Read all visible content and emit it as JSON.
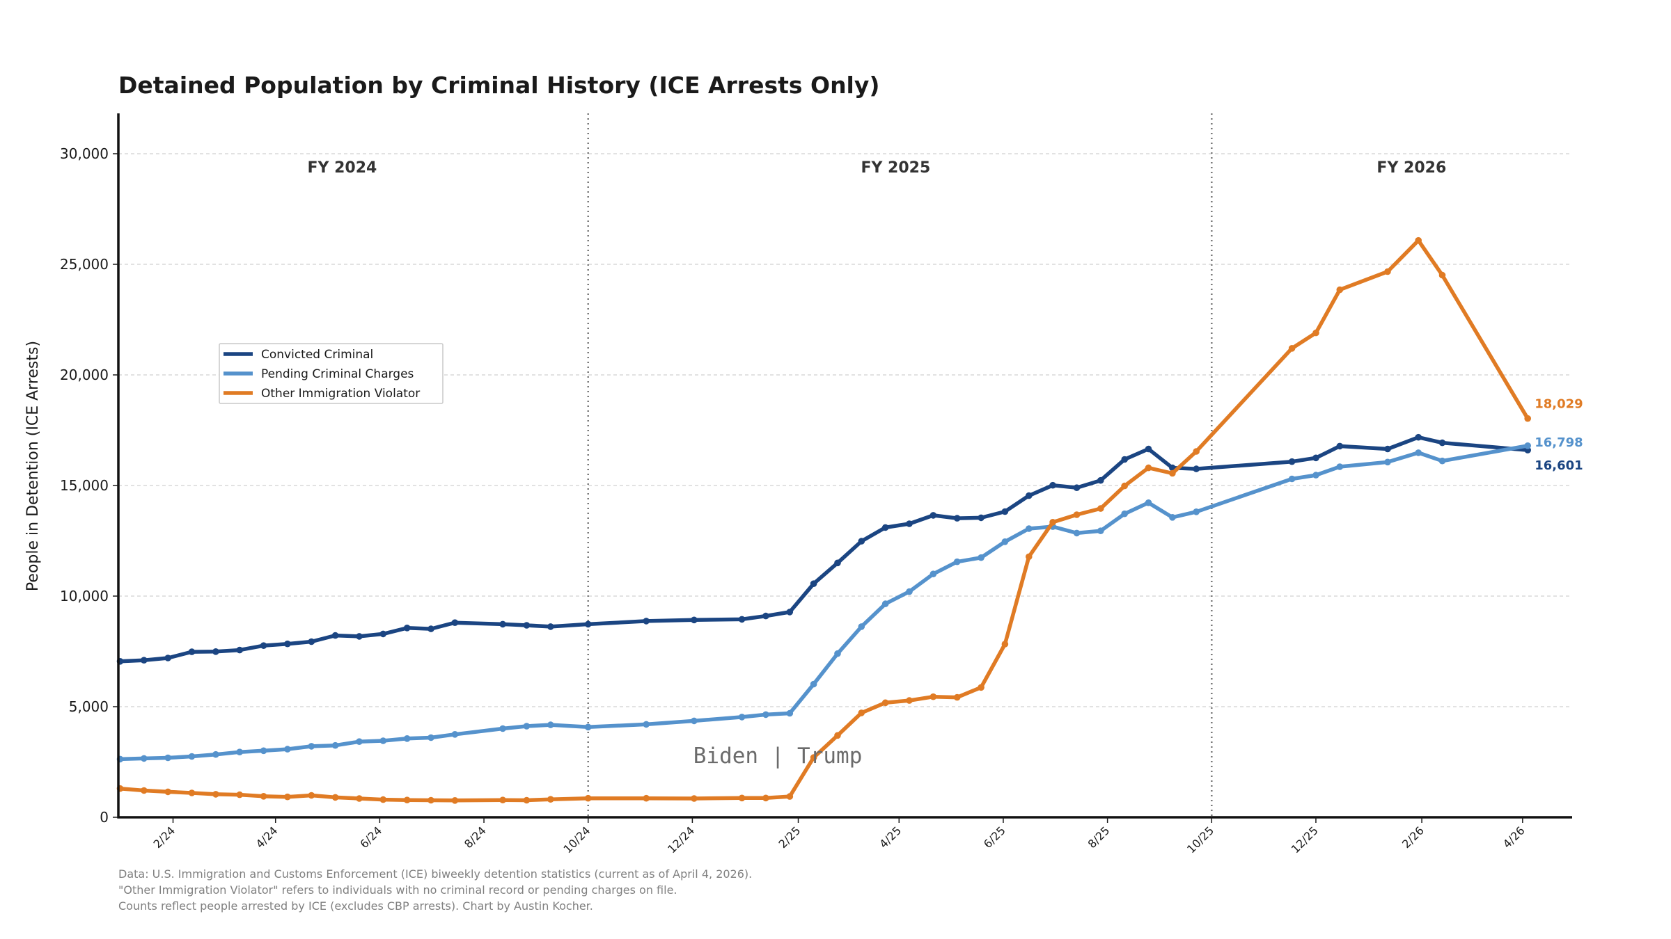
{
  "chart_data": {
    "type": "line",
    "title": "Detained Population by Criminal History (ICE Arrests Only)",
    "ylabel": "People in Detention (ICE Arrests)",
    "ylim": [
      0,
      32000
    ],
    "yticks": [
      0,
      5000,
      10000,
      15000,
      20000,
      25000,
      30000
    ],
    "ytick_labels": [
      "0",
      "5,000",
      "10,000",
      "15,000",
      "20,000",
      "25,000",
      "30,000"
    ],
    "xlim": [
      "2023-12-31",
      "2026-04-30"
    ],
    "xticks": [
      "2024-02-01",
      "2024-04-01",
      "2024-06-01",
      "2024-08-01",
      "2024-10-01",
      "2024-12-01",
      "2025-02-01",
      "2025-04-01",
      "2025-06-01",
      "2025-08-01",
      "2025-10-01",
      "2025-12-01",
      "2026-02-01",
      "2026-04-01"
    ],
    "xtick_labels": [
      "2/24",
      "4/24",
      "6/24",
      "8/24",
      "10/24",
      "12/24",
      "2/25",
      "4/25",
      "6/25",
      "8/25",
      "10/25",
      "12/25",
      "2/26",
      "4/26"
    ],
    "grid": "y-dashed",
    "legend_position": "upper-left",
    "fiscal_year_dividers": [
      "2024-10-01",
      "2025-10-01"
    ],
    "fiscal_year_labels": [
      {
        "text": "FY 2024",
        "x": "2024-05-10",
        "y": 29400
      },
      {
        "text": "FY 2025",
        "x": "2025-03-30",
        "y": 29400
      },
      {
        "text": "FY 2026",
        "x": "2026-01-26",
        "y": 29400
      }
    ],
    "era_annotation": {
      "text": "Biden  |  Trump",
      "x": "2025-01-20",
      "y": 2800
    },
    "series": [
      {
        "name": "Convicted Criminal",
        "color": "#1b4582",
        "end_label": "16,601",
        "points": [
          [
            "2024-01-01",
            7050
          ],
          [
            "2024-01-15",
            7100
          ],
          [
            "2024-01-29",
            7200
          ],
          [
            "2024-02-12",
            7480
          ],
          [
            "2024-02-26",
            7490
          ],
          [
            "2024-03-11",
            7560
          ],
          [
            "2024-03-25",
            7760
          ],
          [
            "2024-04-08",
            7840
          ],
          [
            "2024-04-22",
            7940
          ],
          [
            "2024-05-06",
            8220
          ],
          [
            "2024-05-20",
            8180
          ],
          [
            "2024-06-03",
            8290
          ],
          [
            "2024-06-17",
            8560
          ],
          [
            "2024-07-01",
            8520
          ],
          [
            "2024-07-15",
            8800
          ],
          [
            "2024-08-12",
            8730
          ],
          [
            "2024-08-26",
            8680
          ],
          [
            "2024-09-09",
            8620
          ],
          [
            "2024-10-01",
            8730
          ],
          [
            "2024-11-04",
            8870
          ],
          [
            "2024-12-02",
            8920
          ],
          [
            "2024-12-30",
            8950
          ],
          [
            "2025-01-13",
            9100
          ],
          [
            "2025-01-27",
            9280
          ],
          [
            "2025-02-10",
            10560
          ],
          [
            "2025-02-24",
            11500
          ],
          [
            "2025-03-10",
            12480
          ],
          [
            "2025-03-24",
            13100
          ],
          [
            "2025-04-07",
            13270
          ],
          [
            "2025-04-21",
            13650
          ],
          [
            "2025-05-05",
            13520
          ],
          [
            "2025-05-19",
            13540
          ],
          [
            "2025-06-02",
            13820
          ],
          [
            "2025-06-16",
            14540
          ],
          [
            "2025-06-30",
            15010
          ],
          [
            "2025-07-14",
            14900
          ],
          [
            "2025-07-28",
            15230
          ],
          [
            "2025-08-11",
            16180
          ],
          [
            "2025-08-25",
            16650
          ],
          [
            "2025-09-08",
            15800
          ],
          [
            "2025-09-22",
            15750
          ],
          [
            "2025-11-17",
            16080
          ],
          [
            "2025-12-01",
            16250
          ],
          [
            "2025-12-15",
            16780
          ],
          [
            "2026-01-12",
            16650
          ],
          [
            "2026-01-30",
            17180
          ],
          [
            "2026-02-13",
            16930
          ],
          [
            "2026-04-04",
            16601
          ]
        ]
      },
      {
        "name": "Pending Criminal Charges",
        "color": "#5592cc",
        "end_label": "16,798",
        "points": [
          [
            "2024-01-01",
            2630
          ],
          [
            "2024-01-15",
            2660
          ],
          [
            "2024-01-29",
            2690
          ],
          [
            "2024-02-12",
            2750
          ],
          [
            "2024-02-26",
            2840
          ],
          [
            "2024-03-11",
            2950
          ],
          [
            "2024-03-25",
            3010
          ],
          [
            "2024-04-08",
            3080
          ],
          [
            "2024-04-22",
            3210
          ],
          [
            "2024-05-06",
            3250
          ],
          [
            "2024-05-20",
            3420
          ],
          [
            "2024-06-03",
            3460
          ],
          [
            "2024-06-17",
            3560
          ],
          [
            "2024-07-01",
            3600
          ],
          [
            "2024-07-15",
            3750
          ],
          [
            "2024-08-12",
            4010
          ],
          [
            "2024-08-26",
            4120
          ],
          [
            "2024-09-09",
            4180
          ],
          [
            "2024-10-01",
            4080
          ],
          [
            "2024-11-04",
            4200
          ],
          [
            "2024-12-02",
            4360
          ],
          [
            "2024-12-30",
            4530
          ],
          [
            "2025-01-13",
            4640
          ],
          [
            "2025-01-27",
            4700
          ],
          [
            "2025-02-10",
            6020
          ],
          [
            "2025-02-24",
            7400
          ],
          [
            "2025-03-10",
            8620
          ],
          [
            "2025-03-24",
            9650
          ],
          [
            "2025-04-07",
            10200
          ],
          [
            "2025-04-21",
            11000
          ],
          [
            "2025-05-05",
            11550
          ],
          [
            "2025-05-19",
            11740
          ],
          [
            "2025-06-02",
            12460
          ],
          [
            "2025-06-16",
            13050
          ],
          [
            "2025-06-30",
            13140
          ],
          [
            "2025-07-14",
            12850
          ],
          [
            "2025-07-28",
            12950
          ],
          [
            "2025-08-11",
            13720
          ],
          [
            "2025-08-25",
            14220
          ],
          [
            "2025-09-08",
            13560
          ],
          [
            "2025-09-22",
            13810
          ],
          [
            "2025-11-17",
            15300
          ],
          [
            "2025-12-01",
            15470
          ],
          [
            "2025-12-15",
            15850
          ],
          [
            "2026-01-12",
            16060
          ],
          [
            "2026-01-30",
            16480
          ],
          [
            "2026-02-13",
            16110
          ],
          [
            "2026-04-04",
            16798
          ]
        ]
      },
      {
        "name": "Other Immigration Violator",
        "color": "#e07b24",
        "end_label": "18,029",
        "points": [
          [
            "2024-01-01",
            1300
          ],
          [
            "2024-01-15",
            1210
          ],
          [
            "2024-01-29",
            1150
          ],
          [
            "2024-02-12",
            1100
          ],
          [
            "2024-02-26",
            1040
          ],
          [
            "2024-03-11",
            1020
          ],
          [
            "2024-03-25",
            950
          ],
          [
            "2024-04-08",
            920
          ],
          [
            "2024-04-22",
            990
          ],
          [
            "2024-05-06",
            900
          ],
          [
            "2024-05-20",
            850
          ],
          [
            "2024-06-03",
            800
          ],
          [
            "2024-06-17",
            780
          ],
          [
            "2024-07-01",
            770
          ],
          [
            "2024-07-15",
            760
          ],
          [
            "2024-08-12",
            780
          ],
          [
            "2024-08-26",
            770
          ],
          [
            "2024-09-09",
            810
          ],
          [
            "2024-10-01",
            860
          ],
          [
            "2024-11-04",
            860
          ],
          [
            "2024-12-02",
            850
          ],
          [
            "2024-12-30",
            870
          ],
          [
            "2025-01-13",
            870
          ],
          [
            "2025-01-27",
            940
          ],
          [
            "2025-02-10",
            2700
          ],
          [
            "2025-02-24",
            3700
          ],
          [
            "2025-03-10",
            4720
          ],
          [
            "2025-03-24",
            5180
          ],
          [
            "2025-04-07",
            5280
          ],
          [
            "2025-04-21",
            5450
          ],
          [
            "2025-05-05",
            5420
          ],
          [
            "2025-05-19",
            5870
          ],
          [
            "2025-06-02",
            7830
          ],
          [
            "2025-06-16",
            11780
          ],
          [
            "2025-06-30",
            13340
          ],
          [
            "2025-07-14",
            13680
          ],
          [
            "2025-07-28",
            13960
          ],
          [
            "2025-08-11",
            14980
          ],
          [
            "2025-08-25",
            15800
          ],
          [
            "2025-09-08",
            15550
          ],
          [
            "2025-09-22",
            16540
          ],
          [
            "2025-11-17",
            21200
          ],
          [
            "2025-12-01",
            21900
          ],
          [
            "2025-12-15",
            23850
          ],
          [
            "2026-01-12",
            24670
          ],
          [
            "2026-01-30",
            26080
          ],
          [
            "2026-02-13",
            24510
          ],
          [
            "2026-04-04",
            18029
          ]
        ]
      }
    ],
    "footnotes": [
      "Data: U.S. Immigration and Customs Enforcement (ICE) biweekly detention statistics (current as of April 4, 2026).",
      "\"Other Immigration Violator\" refers to individuals with no criminal record or pending charges on file.",
      "Counts reflect people arrested by ICE (excludes CBP arrests). Chart by Austin Kocher."
    ]
  }
}
